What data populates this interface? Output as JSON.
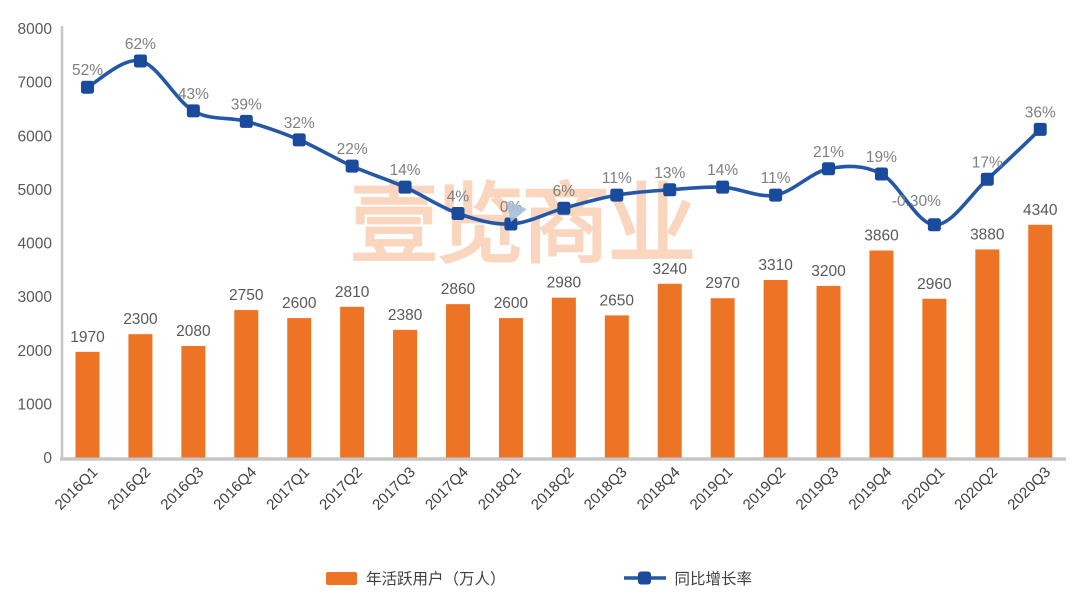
{
  "chart_data": {
    "type": "combo",
    "title": "",
    "categories": [
      "2016Q1",
      "2016Q2",
      "2016Q3",
      "2016Q4",
      "2017Q1",
      "2017Q2",
      "2017Q3",
      "2017Q4",
      "2018Q1",
      "2018Q2",
      "2018Q3",
      "2018Q4",
      "2019Q1",
      "2019Q2",
      "2019Q3",
      "2019Q4",
      "2020Q1",
      "2020Q2",
      "2020Q3"
    ],
    "y_axis": {
      "min": 0,
      "max": 8000,
      "step": 1000,
      "tick_labels": [
        "0",
        "1000",
        "2000",
        "3000",
        "4000",
        "5000",
        "6000",
        "7000",
        "8000"
      ]
    },
    "grid": false,
    "legend_position": "bottom",
    "series": [
      {
        "name": "年活跃用户（万人）",
        "type": "bar",
        "color": "#ED7425",
        "values": [
          1970,
          2300,
          2080,
          2750,
          2600,
          2810,
          2380,
          2860,
          2600,
          2980,
          2650,
          3240,
          2970,
          3310,
          3200,
          3860,
          2960,
          3880,
          4340
        ],
        "data_labels": [
          "1970",
          "2300",
          "2080",
          "2750",
          "2600",
          "2810",
          "2380",
          "2860",
          "2600",
          "2980",
          "2650",
          "3240",
          "2970",
          "3310",
          "3200",
          "3860",
          "2960",
          "3880",
          "4340"
        ]
      },
      {
        "name": "同比增长率",
        "type": "line",
        "color": "#2457A6",
        "marker_color": "#1A4A9C",
        "values_percent": [
          52,
          62,
          43,
          39,
          32,
          22,
          14,
          4,
          0,
          6,
          11,
          13,
          14,
          11,
          21,
          19,
          -0.3,
          17,
          36
        ],
        "data_labels": [
          "52%",
          "62%",
          "43%",
          "39%",
          "32%",
          "22%",
          "14%",
          "4%",
          "0%",
          "6%",
          "11%",
          "13%",
          "14%",
          "11%",
          "21%",
          "19%",
          "-0.30%",
          "17%",
          "36%"
        ]
      }
    ],
    "label_colors": {
      "bar_labels": "#595959",
      "pct_labels": "#7F7F7F",
      "y_ticks": "#595959",
      "x_ticks": "#404040"
    }
  },
  "watermark": {
    "text": "壹览商业",
    "color": "#ED7425"
  },
  "cursor": {
    "shape": "mouse-pointer",
    "color": "#A9BFDA"
  }
}
